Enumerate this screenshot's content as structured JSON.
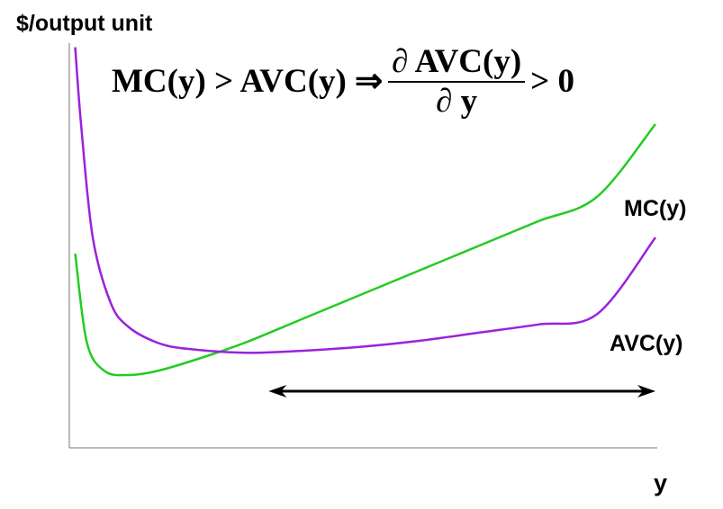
{
  "chart_data": {
    "type": "line",
    "title": "",
    "ylabel": "$/output unit",
    "xlabel": "y",
    "xlim": [
      0,
      10
    ],
    "ylim": [
      0,
      10
    ],
    "grid": false,
    "equation": {
      "lhs": "MC(y) > AVC(y) ⇒",
      "numerator": "∂ AVC(y)",
      "denominator": "∂ y",
      "rhs": "> 0"
    },
    "series": [
      {
        "name": "MC(y)",
        "color": "#22cc22",
        "x": [
          0.1,
          0.3,
          0.6,
          1.0,
          1.5,
          2.2,
          3.0,
          4.0,
          5.0,
          6.0,
          7.0,
          8.0,
          9.0,
          10.0
        ],
        "y": [
          4.8,
          2.6,
          1.9,
          1.8,
          1.9,
          2.2,
          2.6,
          3.2,
          3.8,
          4.4,
          5.0,
          5.6,
          6.2,
          8.0
        ]
      },
      {
        "name": "AVC(y)",
        "color": "#9922dd",
        "x": [
          0.1,
          0.2,
          0.4,
          0.7,
          1.0,
          1.5,
          2.0,
          3.0,
          4.0,
          5.0,
          6.0,
          7.0,
          8.0,
          9.0,
          10.0
        ],
        "y": [
          9.9,
          8.0,
          5.2,
          3.6,
          3.0,
          2.6,
          2.45,
          2.35,
          2.4,
          2.5,
          2.65,
          2.85,
          3.05,
          3.3,
          5.2
        ]
      }
    ],
    "annotations": [
      {
        "type": "double-arrow",
        "x_start": 3.4,
        "x_end": 10.0,
        "y": 1.4
      }
    ]
  }
}
